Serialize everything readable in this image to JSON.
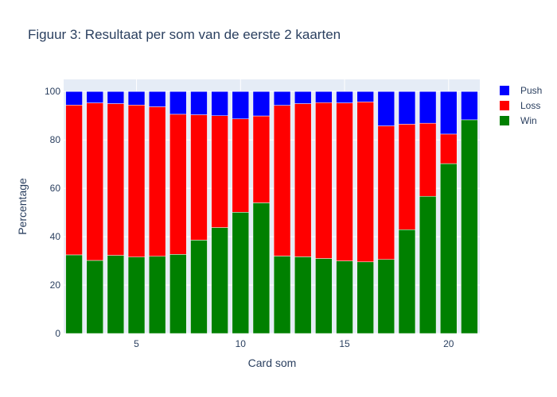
{
  "chart_data": {
    "type": "bar",
    "barmode": "stack",
    "title": "Figuur 3: Resultaat per som van de eerste 2 kaarten",
    "xlabel": "Card som",
    "ylabel": "Percentage",
    "x": [
      2,
      3,
      4,
      5,
      6,
      7,
      8,
      9,
      10,
      11,
      12,
      13,
      14,
      15,
      16,
      17,
      18,
      19,
      20,
      21
    ],
    "xlim": [
      1.5,
      21.5
    ],
    "ylim": [
      0,
      105
    ],
    "xticks": [
      5,
      10,
      15,
      20
    ],
    "yticks": [
      0,
      20,
      40,
      60,
      80,
      100
    ],
    "grid": true,
    "legend_position": "top-right",
    "series": [
      {
        "name": "Win",
        "color": "#008000",
        "values": [
          32.5,
          30.2,
          32.3,
          31.6,
          31.9,
          32.7,
          38.6,
          43.8,
          50.1,
          54.0,
          32.0,
          31.7,
          31.0,
          30.0,
          29.6,
          30.6,
          42.9,
          56.7,
          70.2,
          88.3
        ]
      },
      {
        "name": "Loss",
        "color": "#ff0000",
        "values": [
          61.9,
          65.1,
          62.7,
          62.8,
          61.8,
          57.9,
          51.8,
          46.2,
          38.6,
          35.9,
          62.3,
          63.3,
          64.4,
          65.3,
          66.1,
          55.2,
          43.6,
          30.2,
          12.2,
          0.0
        ]
      },
      {
        "name": "Push",
        "color": "#0000ff",
        "values": [
          5.6,
          4.7,
          5.0,
          5.6,
          6.3,
          9.4,
          9.6,
          10.0,
          11.3,
          10.1,
          5.7,
          5.0,
          4.6,
          4.7,
          4.3,
          14.2,
          13.5,
          13.1,
          17.6,
          11.7
        ]
      }
    ]
  }
}
